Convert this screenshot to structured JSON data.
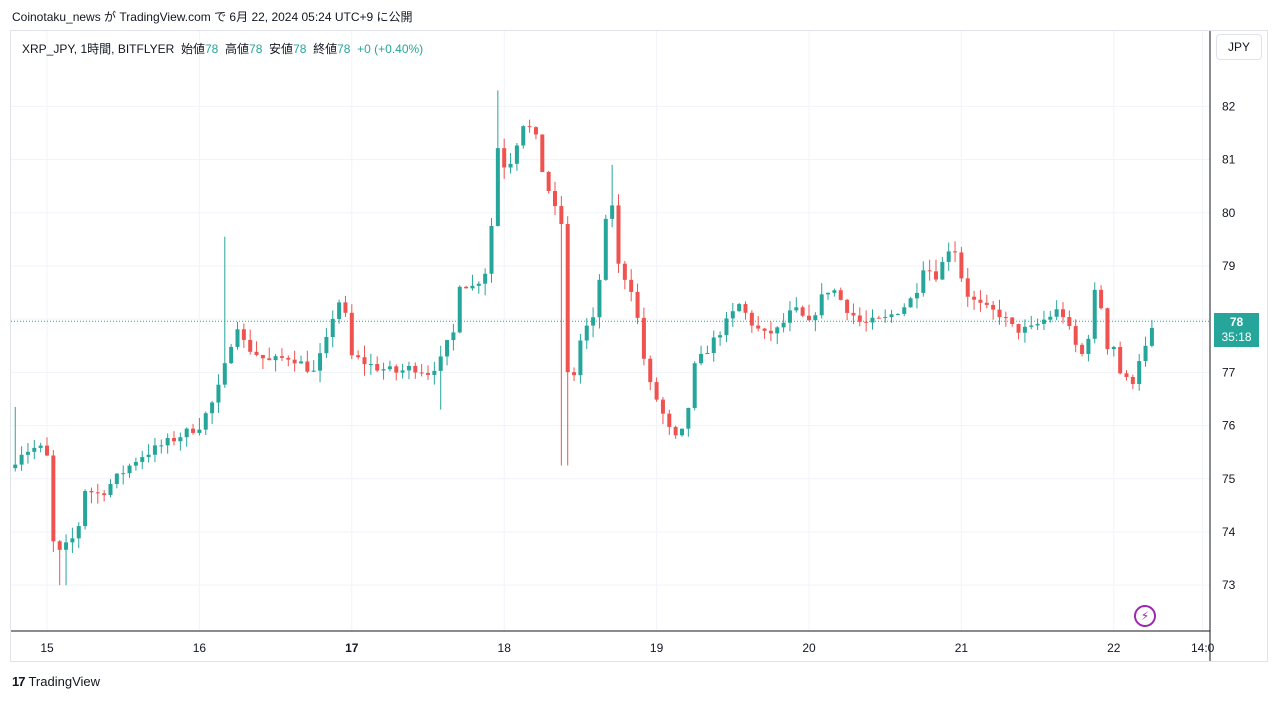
{
  "header": {
    "publish_line": "Coinotaku_news が TradingView.com で 6月 22, 2024 05:24 UTC+9 に公開"
  },
  "legend": {
    "symbol": "XRP_JPY, 1時間, BITFLYER",
    "open_label": "始値",
    "open": "78",
    "high_label": "高値",
    "high": "78",
    "low_label": "安値",
    "low": "78",
    "close_label": "終値",
    "close": "78",
    "change": "+0 (+0.40%)"
  },
  "currency_button": "JPY",
  "last_price": {
    "price": "78",
    "countdown": "35:18"
  },
  "footer": {
    "brand": "TradingView",
    "logo_glyph": "17"
  },
  "colors": {
    "up": "#26a69a",
    "down": "#ef5350",
    "grid": "#f0f3fa",
    "accent": "#9c27b0"
  },
  "chart_data": {
    "type": "candlestick",
    "symbol": "XRP_JPY",
    "interval": "1h",
    "exchange": "BITFLYER",
    "ylim": [
      72.1,
      83.0
    ],
    "y_ticks": [
      73,
      74,
      75,
      76,
      77,
      78,
      79,
      80,
      81,
      82
    ],
    "x_range_days": [
      14.75,
      22.7
    ],
    "x_ticks": [
      {
        "t": 15,
        "label": "15",
        "bold": false
      },
      {
        "t": 16,
        "label": "16",
        "bold": false
      },
      {
        "t": 17,
        "label": "17",
        "bold": true
      },
      {
        "t": 18,
        "label": "18",
        "bold": false
      },
      {
        "t": 19,
        "label": "19",
        "bold": false
      },
      {
        "t": 20,
        "label": "20",
        "bold": false
      },
      {
        "t": 21,
        "label": "21",
        "bold": false
      },
      {
        "t": 22,
        "label": "22",
        "bold": false
      },
      {
        "t": 22.583,
        "label": "14:0",
        "bold": false
      }
    ],
    "grid": true,
    "last_price_line": 77.96,
    "anchors": [
      [
        14.75,
        75.2
      ],
      [
        14.83,
        75.5
      ],
      [
        14.95,
        75.6
      ],
      [
        15.0,
        75.4
      ],
      [
        15.04,
        73.8
      ],
      [
        15.08,
        73.6
      ],
      [
        15.15,
        73.8
      ],
      [
        15.2,
        74.0
      ],
      [
        15.25,
        74.8
      ],
      [
        15.35,
        74.7
      ],
      [
        15.45,
        75.0
      ],
      [
        15.6,
        75.4
      ],
      [
        15.8,
        75.7
      ],
      [
        16.0,
        76.0
      ],
      [
        16.1,
        76.5
      ],
      [
        16.15,
        76.9
      ],
      [
        16.2,
        77.5
      ],
      [
        16.25,
        77.9
      ],
      [
        16.3,
        77.5
      ],
      [
        16.45,
        77.2
      ],
      [
        16.6,
        77.3
      ],
      [
        16.75,
        77.0
      ],
      [
        16.85,
        77.7
      ],
      [
        16.9,
        78.4
      ],
      [
        16.95,
        78.2
      ],
      [
        17.0,
        77.3
      ],
      [
        17.15,
        77.1
      ],
      [
        17.3,
        77.0
      ],
      [
        17.4,
        77.1
      ],
      [
        17.5,
        77.0
      ],
      [
        17.58,
        77.2
      ],
      [
        17.62,
        77.5
      ],
      [
        17.68,
        77.8
      ],
      [
        17.7,
        78.7
      ],
      [
        17.8,
        78.6
      ],
      [
        17.9,
        79.0
      ],
      [
        17.95,
        81.3
      ],
      [
        18.0,
        80.9
      ],
      [
        18.05,
        81.0
      ],
      [
        18.12,
        81.7
      ],
      [
        18.2,
        81.5
      ],
      [
        18.25,
        80.8
      ],
      [
        18.35,
        79.9
      ],
      [
        18.4,
        79.7
      ],
      [
        18.42,
        76.4
      ],
      [
        18.5,
        77.6
      ],
      [
        18.55,
        77.9
      ],
      [
        18.6,
        78.0
      ],
      [
        18.65,
        79.5
      ],
      [
        18.7,
        80.4
      ],
      [
        18.75,
        79.0
      ],
      [
        18.85,
        78.5
      ],
      [
        18.9,
        77.5
      ],
      [
        18.95,
        76.8
      ],
      [
        19.0,
        76.5
      ],
      [
        19.1,
        75.8
      ],
      [
        19.15,
        75.7
      ],
      [
        19.2,
        76.2
      ],
      [
        19.25,
        77.1
      ],
      [
        19.35,
        77.5
      ],
      [
        19.45,
        77.9
      ],
      [
        19.55,
        78.3
      ],
      [
        19.6,
        78.0
      ],
      [
        19.7,
        77.7
      ],
      [
        19.8,
        77.8
      ],
      [
        19.9,
        78.2
      ],
      [
        20.0,
        77.9
      ],
      [
        20.1,
        78.5
      ],
      [
        20.15,
        78.6
      ],
      [
        20.25,
        78.2
      ],
      [
        20.35,
        77.9
      ],
      [
        20.5,
        78.0
      ],
      [
        20.65,
        78.3
      ],
      [
        20.7,
        78.5
      ],
      [
        20.75,
        79.0
      ],
      [
        20.85,
        78.8
      ],
      [
        20.9,
        79.3
      ],
      [
        20.95,
        79.4
      ],
      [
        21.0,
        78.8
      ],
      [
        21.05,
        78.4
      ],
      [
        21.15,
        78.2
      ],
      [
        21.25,
        78.1
      ],
      [
        21.35,
        77.8
      ],
      [
        21.45,
        77.8
      ],
      [
        21.55,
        78.0
      ],
      [
        21.65,
        78.2
      ],
      [
        21.75,
        77.5
      ],
      [
        21.8,
        77.3
      ],
      [
        21.85,
        77.9
      ],
      [
        21.88,
        78.6
      ],
      [
        21.92,
        78.2
      ],
      [
        21.95,
        77.5
      ],
      [
        22.0,
        77.5
      ],
      [
        22.05,
        76.9
      ],
      [
        22.12,
        76.8
      ],
      [
        22.17,
        77.3
      ],
      [
        22.22,
        77.5
      ],
      [
        22.27,
        77.95
      ]
    ],
    "spikes": [
      {
        "t": 16.17,
        "high": 79.55
      },
      {
        "t": 17.95,
        "high": 82.3
      },
      {
        "t": 18.4,
        "low": 75.25
      },
      {
        "t": 14.8,
        "high": 76.35
      },
      {
        "t": 15.1,
        "low": 73.0
      },
      {
        "t": 17.6,
        "low": 76.3
      },
      {
        "t": 18.7,
        "high": 80.9
      }
    ]
  }
}
